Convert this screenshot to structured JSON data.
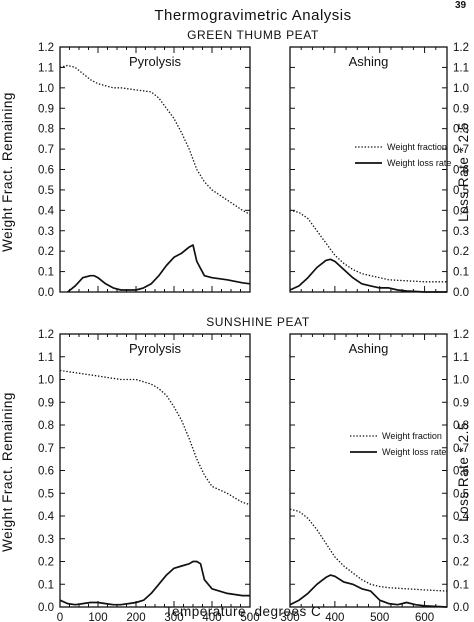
{
  "page_number": "39",
  "title": "Thermogravimetric Analysis",
  "left_axis_label": "Weight Fract. Remaining",
  "right_axis_label": "Loss Rate * 2.5",
  "x_axis_label": "Temperature, degrees C",
  "legend": {
    "weight_fraction": "Weight fraction",
    "weight_loss_rate": "Weight loss rate"
  },
  "chart_data": [
    {
      "type": "line",
      "title": "GREEN THUMB PEAT",
      "panels": [
        {
          "name": "Pyrolysis",
          "xlim": [
            0,
            500
          ],
          "ylim": [
            0,
            1.2
          ],
          "series": [
            {
              "name": "Weight fraction",
              "style": "dotted",
              "x": [
                0,
                20,
                40,
                60,
                80,
                100,
                120,
                140,
                160,
                200,
                240,
                260,
                280,
                300,
                320,
                340,
                360,
                380,
                400,
                440,
                480,
                500
              ],
              "y": [
                1.1,
                1.11,
                1.1,
                1.07,
                1.04,
                1.02,
                1.01,
                1.0,
                1.0,
                0.99,
                0.98,
                0.95,
                0.9,
                0.85,
                0.78,
                0.7,
                0.6,
                0.54,
                0.5,
                0.45,
                0.4,
                0.38
              ]
            },
            {
              "name": "Weight loss rate",
              "style": "solid",
              "x": [
                20,
                40,
                60,
                80,
                90,
                100,
                120,
                140,
                160,
                180,
                200,
                220,
                240,
                260,
                280,
                300,
                320,
                340,
                350,
                360,
                380,
                400,
                440,
                480,
                500
              ],
              "y": [
                0.0,
                0.03,
                0.07,
                0.08,
                0.08,
                0.07,
                0.04,
                0.02,
                0.01,
                0.01,
                0.01,
                0.02,
                0.04,
                0.08,
                0.13,
                0.17,
                0.19,
                0.22,
                0.23,
                0.15,
                0.08,
                0.07,
                0.06,
                0.045,
                0.04
              ]
            }
          ]
        },
        {
          "name": "Ashing",
          "xlim": [
            300,
            650
          ],
          "ylim": [
            0,
            1.2
          ],
          "series": [
            {
              "name": "Weight fraction",
              "style": "dotted",
              "x": [
                300,
                320,
                340,
                360,
                380,
                400,
                420,
                440,
                460,
                480,
                500,
                520,
                560,
                600,
                650
              ],
              "y": [
                0.4,
                0.39,
                0.36,
                0.3,
                0.24,
                0.18,
                0.14,
                0.11,
                0.09,
                0.08,
                0.07,
                0.06,
                0.055,
                0.05,
                0.05
              ]
            },
            {
              "name": "Weight loss rate",
              "style": "solid",
              "x": [
                300,
                320,
                340,
                360,
                380,
                390,
                400,
                420,
                440,
                460,
                480,
                500,
                520,
                540,
                560,
                600,
                650
              ],
              "y": [
                0.01,
                0.03,
                0.07,
                0.12,
                0.155,
                0.16,
                0.15,
                0.11,
                0.07,
                0.04,
                0.03,
                0.02,
                0.02,
                0.01,
                0.005,
                0.0,
                0.0
              ]
            }
          ]
        }
      ],
      "legend_entries": [
        "Weight fraction",
        "Weight loss rate"
      ]
    },
    {
      "type": "line",
      "title": "SUNSHINE PEAT",
      "panels": [
        {
          "name": "Pyrolysis",
          "xlim": [
            0,
            500
          ],
          "ylim": [
            0,
            1.2
          ],
          "series": [
            {
              "name": "Weight fraction",
              "style": "dotted",
              "x": [
                0,
                40,
                80,
                120,
                160,
                200,
                240,
                260,
                280,
                300,
                320,
                340,
                360,
                380,
                400,
                440,
                480,
                500
              ],
              "y": [
                1.04,
                1.03,
                1.02,
                1.01,
                1.0,
                1.0,
                0.98,
                0.96,
                0.93,
                0.88,
                0.82,
                0.74,
                0.65,
                0.58,
                0.53,
                0.5,
                0.46,
                0.45
              ]
            },
            {
              "name": "Weight loss rate",
              "style": "solid",
              "x": [
                0,
                20,
                40,
                60,
                80,
                100,
                120,
                140,
                160,
                180,
                200,
                220,
                240,
                260,
                280,
                300,
                320,
                340,
                350,
                360,
                370,
                380,
                400,
                440,
                480,
                500
              ],
              "y": [
                0.03,
                0.015,
                0.01,
                0.015,
                0.02,
                0.02,
                0.015,
                0.01,
                0.01,
                0.015,
                0.02,
                0.03,
                0.06,
                0.1,
                0.14,
                0.17,
                0.18,
                0.19,
                0.2,
                0.2,
                0.19,
                0.12,
                0.08,
                0.06,
                0.05,
                0.05
              ]
            }
          ]
        },
        {
          "name": "Ashing",
          "xlim": [
            300,
            650
          ],
          "ylim": [
            0,
            1.2
          ],
          "series": [
            {
              "name": "Weight fraction",
              "style": "dotted",
              "x": [
                300,
                320,
                340,
                360,
                380,
                400,
                420,
                440,
                460,
                480,
                500,
                520,
                560,
                600,
                650
              ],
              "y": [
                0.43,
                0.42,
                0.39,
                0.34,
                0.28,
                0.22,
                0.18,
                0.15,
                0.12,
                0.1,
                0.09,
                0.085,
                0.08,
                0.075,
                0.07
              ]
            },
            {
              "name": "Weight loss rate",
              "style": "solid",
              "x": [
                300,
                320,
                340,
                360,
                380,
                390,
                400,
                420,
                440,
                460,
                480,
                500,
                520,
                540,
                560,
                580,
                600,
                650
              ],
              "y": [
                0.01,
                0.03,
                0.06,
                0.1,
                0.13,
                0.14,
                0.135,
                0.11,
                0.1,
                0.08,
                0.07,
                0.03,
                0.015,
                0.01,
                0.02,
                0.01,
                0.005,
                0.0
              ]
            }
          ]
        }
      ],
      "legend_entries": [
        "Weight fraction",
        "Weight loss rate"
      ]
    }
  ]
}
